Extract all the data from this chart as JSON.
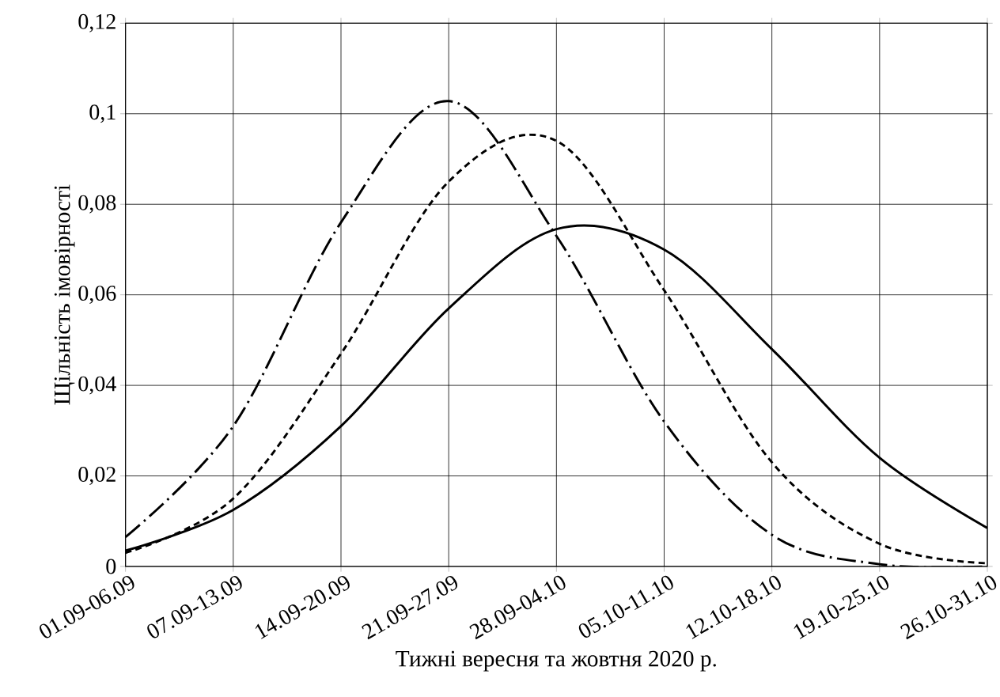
{
  "chart_data": {
    "type": "line",
    "xlabel": "Тижні вересня та жовтня 2020 р.",
    "ylabel": "Щільність імовірності",
    "categories": [
      "01.09-06.09",
      "07.09-13.09",
      "14.09-20.09",
      "21.09-27.09",
      "28.09-04.10",
      "05.10-11.10",
      "12.10-18.10",
      "19.10-25.10",
      "26.10-31.10"
    ],
    "ylim": [
      0,
      0.12
    ],
    "yticks": [
      {
        "value": 0,
        "label": "0"
      },
      {
        "value": 0.02,
        "label": "0,02"
      },
      {
        "value": 0.04,
        "label": "0,04"
      },
      {
        "value": 0.06,
        "label": "0,06"
      },
      {
        "value": 0.08,
        "label": "0,08"
      },
      {
        "value": 0.1,
        "label": "0,1"
      },
      {
        "value": 0.12,
        "label": "0,12"
      }
    ],
    "grid": true,
    "series": [
      {
        "color": "#000000",
        "line_style": "solid",
        "values": [
          0.0035,
          0.0125,
          0.031,
          0.057,
          0.0745,
          0.07,
          0.048,
          0.024,
          0.0085
        ]
      },
      {
        "color": "#000000",
        "line_style": "dashed",
        "values": [
          0.003,
          0.015,
          0.047,
          0.085,
          0.094,
          0.061,
          0.023,
          0.005,
          0.0007
        ]
      },
      {
        "color": "#000000",
        "line_style": "dashdot",
        "values": [
          0.0065,
          0.031,
          0.076,
          0.1028,
          0.073,
          0.032,
          0.007,
          0.0005,
          0
        ]
      }
    ]
  }
}
